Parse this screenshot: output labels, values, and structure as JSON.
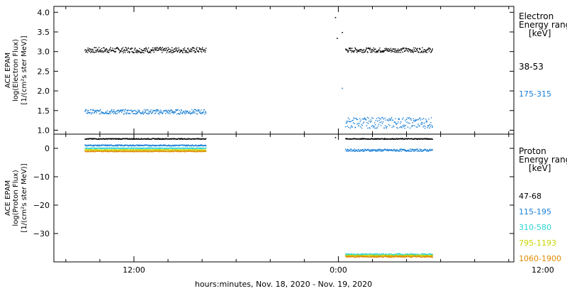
{
  "chart_data": [
    {
      "type": "scatter",
      "ylabel_lines": [
        "ACE EPAM",
        "log(Electron Flux)",
        "[1/(cm²s ster MeV)]"
      ],
      "yticks": [
        1.0,
        1.5,
        2.0,
        2.5,
        3.0,
        3.5,
        4.0
      ],
      "ytick_labels": [
        "1.0",
        "1.5",
        "2.0",
        "2.5",
        "3.0",
        "3.5",
        "4.0"
      ],
      "ylim": [
        0.9,
        4.15
      ],
      "legend_title": [
        "Electron",
        "Energy range",
        "[keV]"
      ],
      "series": [
        {
          "name": "38-53",
          "color": "#000000",
          "segments": [
            {
              "x": [
                -2.9,
                4.2
              ],
              "mean": 3.05,
              "spread": 0.07
            },
            {
              "x": [
                12.4,
                17.5
              ],
              "mean": 3.05,
              "spread": 0.06
            }
          ],
          "points": [
            [
              11.8,
              3.88
            ],
            [
              11.9,
              3.35
            ],
            [
              12.2,
              3.5
            ]
          ]
        },
        {
          "name": "175-315",
          "color": "#1a7fd6",
          "segments": [
            {
              "x": [
                -2.9,
                4.2
              ],
              "mean": 1.48,
              "spread": 0.06
            },
            {
              "x": [
                12.4,
                17.5
              ],
              "mean": 1.2,
              "spread": 0.14
            }
          ],
          "points": [
            [
              12.2,
              2.08
            ]
          ]
        }
      ]
    },
    {
      "type": "scatter",
      "ylabel_lines": [
        "ACE EPAM",
        "log(Proton Flux)",
        "[1/(cm²s ster MeV)]"
      ],
      "yticks": [
        0,
        -10,
        -20,
        -30
      ],
      "ytick_labels": [
        "0",
        "−10",
        "−20",
        "−30"
      ],
      "ylim": [
        -40,
        5
      ],
      "legend_title": [
        "Proton",
        "Energy range",
        "[keV]"
      ],
      "series": [
        {
          "name": "47-68",
          "color": "#000000",
          "segments": [
            {
              "x": [
                -2.9,
                4.2
              ],
              "mean": 3.5,
              "spread": 0.15
            },
            {
              "x": [
                12.4,
                17.5
              ],
              "mean": 3.5,
              "spread": 0.15
            }
          ],
          "points": [
            [
              11.8,
              4.0
            ]
          ]
        },
        {
          "name": "115-195",
          "color": "#1a7fd6",
          "segments": [
            {
              "x": [
                -2.9,
                4.2
              ],
              "mean": 1.2,
              "spread": 0.2
            },
            {
              "x": [
                12.4,
                17.5
              ],
              "mean": -0.5,
              "spread": 0.4
            }
          ],
          "points": []
        },
        {
          "name": "310-580",
          "color": "#2ad4d4",
          "segments": [
            {
              "x": [
                -2.9,
                4.2
              ],
              "mean": 0.2,
              "spread": 0.15
            },
            {
              "x": [
                12.4,
                17.5
              ],
              "mean": -37.2,
              "spread": 0.3
            }
          ],
          "points": []
        },
        {
          "name": "795-1193",
          "color": "#c8d400",
          "segments": [
            {
              "x": [
                -2.9,
                4.2
              ],
              "mean": -0.4,
              "spread": 0.15
            },
            {
              "x": [
                12.4,
                17.5
              ],
              "mean": -37.6,
              "spread": 0.2
            }
          ],
          "points": []
        },
        {
          "name": "1060-1900",
          "color": "#e08a00",
          "segments": [
            {
              "x": [
                -2.9,
                4.2
              ],
              "mean": -0.9,
              "spread": 0.15
            },
            {
              "x": [
                12.4,
                17.5
              ],
              "mean": -38.0,
              "spread": 0.2
            }
          ],
          "points": []
        }
      ]
    }
  ],
  "xaxis": {
    "xlim": [
      -4.7,
      22.3
    ],
    "ticks": [
      0,
      12,
      24
    ],
    "tick_labels": [
      "12:00",
      "0:00",
      "12:00"
    ],
    "minor_step": 2,
    "label": "hours:minutes, Nov. 18, 2020 - Nov. 19, 2020"
  }
}
